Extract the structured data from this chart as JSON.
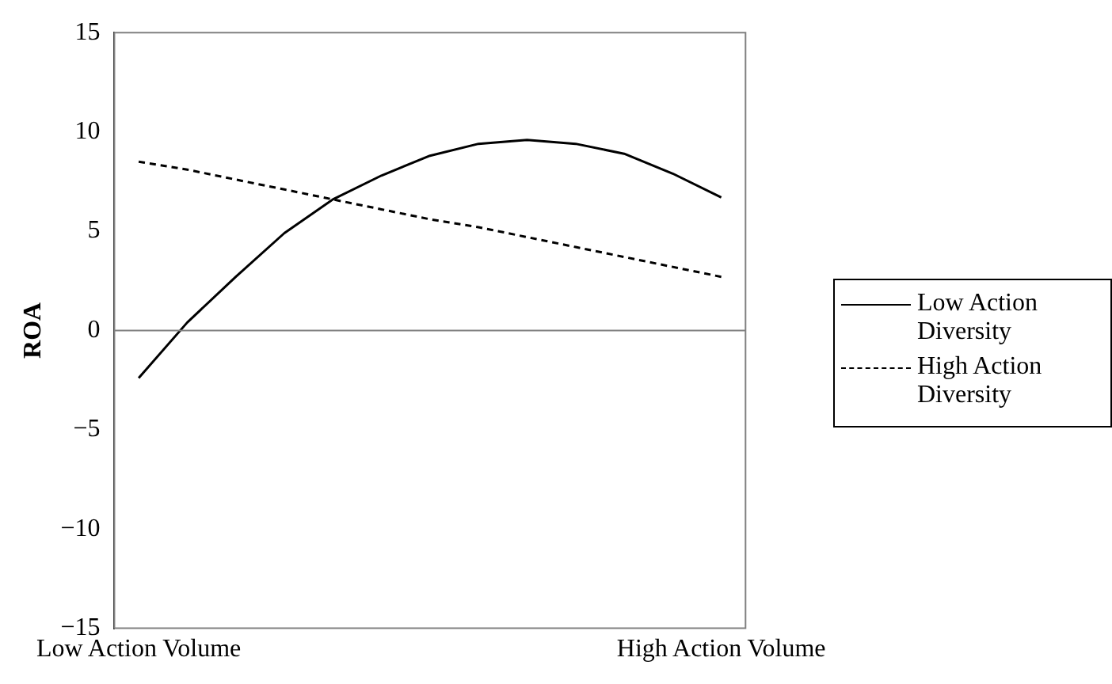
{
  "chart_data": {
    "type": "line",
    "ylabel": "ROA",
    "categories": [
      "Low Action Volume",
      null,
      null,
      null,
      null,
      null,
      null,
      null,
      null,
      null,
      null,
      null,
      "High Action Volume"
    ],
    "series": [
      {
        "name": "Low Action Diversity",
        "color": "#000000",
        "line_style": "solid",
        "values": [
          -2.4,
          0.4,
          2.7,
          4.9,
          6.6,
          7.8,
          8.8,
          9.4,
          9.6,
          9.4,
          8.9,
          7.9,
          6.7
        ]
      },
      {
        "name": "High Action Diversity",
        "color": "#000000",
        "line_style": "dashed",
        "values": [
          8.5,
          8.1,
          7.6,
          7.1,
          6.6,
          6.1,
          5.6,
          5.2,
          4.7,
          4.2,
          3.7,
          3.2,
          2.7
        ]
      }
    ],
    "ylim": [
      -15,
      15
    ],
    "yticks": [
      {
        "value": -15,
        "label": "−15"
      },
      {
        "value": -10,
        "label": "−10"
      },
      {
        "value": -5,
        "label": "−5"
      },
      0,
      5,
      10,
      15
    ],
    "ref_lines": [
      {
        "axis": "y",
        "value": 0,
        "color": "#808080"
      }
    ],
    "grid": false,
    "legend": "right",
    "marker": "none"
  }
}
